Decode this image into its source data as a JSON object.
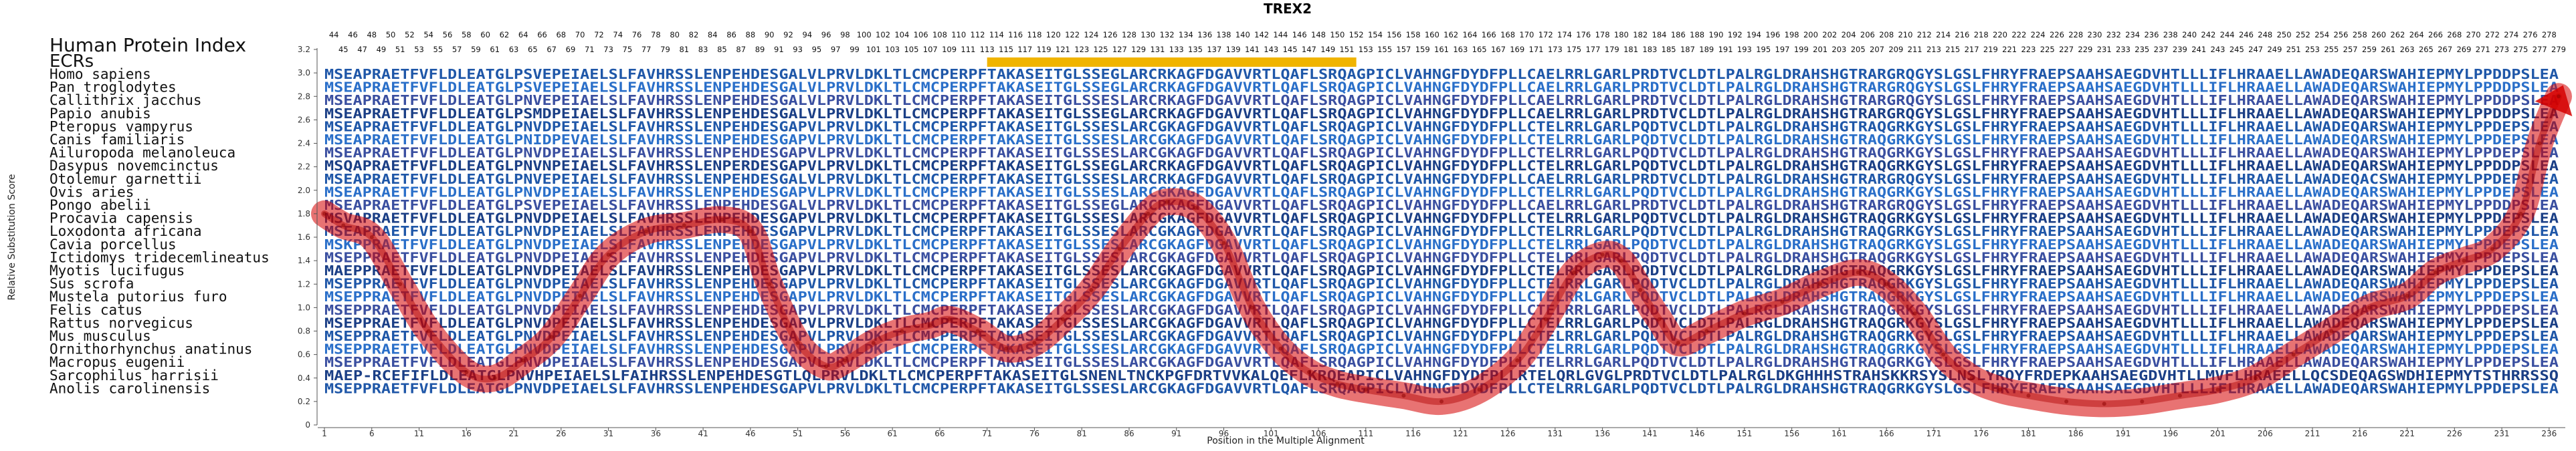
{
  "chart_data": {
    "type": "line",
    "title": "TREX2",
    "xlabel": "Position in the Multiple Alignment",
    "ylabel": "Relative Substitution Score",
    "xlim": [
      1,
      237
    ],
    "ylim": [
      0,
      3.2
    ],
    "yticks": [
      "0",
      "0.2",
      "0.4",
      "0.6",
      "0.8",
      "1.0",
      "1.2",
      "1.4",
      "1.6",
      "1.8",
      "2.0",
      "2.2",
      "2.4",
      "2.6",
      "2.8",
      "3.0",
      "3.2"
    ],
    "xticks": [
      "1",
      "6",
      "11",
      "16",
      "21",
      "26",
      "31",
      "36",
      "41",
      "46",
      "51",
      "56",
      "61",
      "66",
      "71",
      "76",
      "81",
      "86",
      "91",
      "96",
      "101",
      "106",
      "111",
      "116",
      "121",
      "126",
      "131",
      "136",
      "141",
      "146",
      "151",
      "156",
      "161",
      "166",
      "171",
      "176",
      "181",
      "186",
      "191",
      "196",
      "201",
      "206",
      "211",
      "216",
      "221",
      "226",
      "231",
      "236"
    ],
    "human_index_label": "Human Protein Index",
    "ecr_label": "ECRs",
    "human_positions_row1": [
      "44",
      "46",
      "48",
      "50",
      "52",
      "54",
      "56",
      "58",
      "60",
      "62",
      "64",
      "66",
      "68",
      "70",
      "72",
      "74",
      "76",
      "78",
      "80",
      "82",
      "84",
      "86",
      "88",
      "90",
      "92",
      "94",
      "96",
      "98",
      "100",
      "102",
      "104",
      "106",
      "108",
      "110",
      "112",
      "114",
      "116",
      "118",
      "120",
      "122",
      "124",
      "126",
      "128",
      "130",
      "132",
      "134",
      "136",
      "138",
      "140",
      "142",
      "144",
      "146",
      "148",
      "150",
      "152",
      "154",
      "156",
      "158",
      "160",
      "162",
      "164",
      "166",
      "168",
      "170",
      "172",
      "174",
      "176",
      "178",
      "180",
      "182",
      "184",
      "186",
      "188",
      "190",
      "192",
      "194",
      "196",
      "198",
      "200",
      "202",
      "204",
      "206",
      "208",
      "210",
      "212",
      "214",
      "216",
      "218",
      "220",
      "222",
      "224",
      "226",
      "228",
      "230",
      "232",
      "234",
      "236",
      "238",
      "240",
      "242",
      "244",
      "246",
      "248",
      "250",
      "252",
      "254",
      "256",
      "258",
      "260",
      "262",
      "264",
      "266",
      "268",
      "270",
      "272",
      "274",
      "276",
      "278"
    ],
    "human_positions_row2": [
      "45",
      "47",
      "49",
      "51",
      "53",
      "55",
      "57",
      "59",
      "61",
      "63",
      "65",
      "67",
      "69",
      "71",
      "73",
      "75",
      "77",
      "79",
      "81",
      "83",
      "85",
      "87",
      "89",
      "91",
      "93",
      "95",
      "97",
      "99",
      "101",
      "103",
      "105",
      "107",
      "109",
      "111",
      "113",
      "115",
      "117",
      "119",
      "121",
      "123",
      "125",
      "127",
      "129",
      "131",
      "133",
      "135",
      "137",
      "139",
      "141",
      "143",
      "145",
      "147",
      "149",
      "151",
      "153",
      "155",
      "157",
      "159",
      "161",
      "163",
      "165",
      "167",
      "169",
      "171",
      "173",
      "175",
      "177",
      "179",
      "181",
      "183",
      "185",
      "187",
      "189",
      "191",
      "193",
      "195",
      "197",
      "199",
      "201",
      "203",
      "205",
      "207",
      "209",
      "211",
      "213",
      "215",
      "217",
      "219",
      "221",
      "223",
      "225",
      "227",
      "229",
      "231",
      "233",
      "235",
      "237",
      "239",
      "241",
      "243",
      "245",
      "247",
      "249",
      "251",
      "253",
      "255",
      "257",
      "259",
      "261",
      "263",
      "265",
      "267",
      "269",
      "271",
      "273",
      "275",
      "277",
      "279"
    ],
    "ecr_regions": [
      [
        71,
        110
      ]
    ],
    "ecr_color": "#f0b400",
    "species": [
      {
        "name": "Homo sapiens",
        "sequence": "MSEAPRAETFVFLDLEATGLPSVEPEIAELSLFAVHRSSLENPEHDESGALVLPRVLDKLTLCMCPERPFTAKASEITGLSSEGLARCRKAGFDGAVVRTLQAFLSRQAGPICLVAHNGFDYDFPLLCAELRRLGARLPRDTVCLDTLPALRGLDRAHSHGTRARGRQGYSLGSLFHRYFRAEPSAAHSAEGDVHTLLLIFLHRAAELLAWADEQARSWAHIEPMYLPPDDPSLEA"
      },
      {
        "name": "Pan troglodytes",
        "sequence": "MSEAPRAETFVFLDLEATGLPSVEPEIAELSLFAVHRSSLENPEHDESGALVLPRVLDKLTLCMCPERPFTAKASEITGLSSEGLARCRKAGFDGAVVRTLQAFLSRQAGPICLVAHNGFDYDFPLLCAELRRLGARLPRDTVCLDTLPALRGLDRAHSHGTRARGRQGYSLGSLFHRYFRAEPSAAHSAEGDVHTLLLIFLHRAAELLAWADEQARSWAHIEPMYLPPDDPSLEA"
      },
      {
        "name": "Callithrix jacchus",
        "sequence": "MSEAPRAETFVFLDLEATGLPNVEPEIAELSLFAVHRSSLENPEHDESGALVLPRVLDKLTLCMCPERPFTAKASEITGLSSESLARCRKAGFDGAVVRTLQAFLSRQAGPICLVAHNGFDYDFPLLCAELRRLGARLPRDTVCLDTLPALRGLDRAHSHGTRARGRQGYSLGSLFHRYFRAEPSAAHSAEGDVHTLLLIFLHRAAELLAWADEQARSWAHIEPMYLPPDDPSLEA"
      },
      {
        "name": "Papio anubis",
        "sequence": "MSEAPRAETFVFLDLEATGLPSMDPEIAELSLFAVHRSSLENPEHDESGALVLPRVLDKLTLCMCPERPFTAKASEITGLSSEGLARCRKAGFDGAVVRTLQAFLSRQAGPICLVAHNGFDYDFPLLCAELRRLGARLPRDTVCLDTLPALRGLDRAHSHGTRARGRQGYSLGSLFHRYFRAEPSAAHSAEGDVHTLLLIFLHRAAELLAWADEQARSWAHIEPMYLPPDDPSLEA"
      },
      {
        "name": "Pteropus vampyrus",
        "sequence": "MSEAPRAETFVFLDLEATGLPNVDPEIAELSLFAVHRSSLENPEHDESGAPVLPRVLDKLTLCMCPERPFTAKASEITGLSSESLARCGKAGFDGAVVRTLQAFLSRQAGPICLVAHNGFDYDFPLLCTELRRLGARLPQDTVCLDTLPALRGLDRAHSHGTRAQGRKGYSLGSLFHRYFRAEPSAAHSAEGDVHTLLLIFLHRAAELLAWADEQARSWAHIEPMYLPPDEPSLEA"
      },
      {
        "name": "Canis familiaris",
        "sequence": "MSEAPRAETFVFLDLEATGLPNIDPEVAELSLFAVHRSSLENPEHDESGAPVLPRVLDKLTLCMCPERPFTAKASEITGLSSESLARCGKAGFDGAVVRTLQAFLSRQAGPICLVAHNGFDYDFPLLCTELRRLGARLPQDTVCLDTLPALRGLDRAHSHGTRAQGRKGYSLGSLFHRYFRAEPSAAHSAEGDVHTLLLIFLHRAAELLAWADEQARSWAHIEPMYLPPDEPSLEA"
      },
      {
        "name": "Ailuropoda melanoleuca",
        "sequence": "MSEAPRAETFVFLDLEATGLPNVDPEIAELSLFAVHRSSLENPEHDESGAPVLPRVLDKLTLCMCPERPFTAKASEITGLSSESLARCGKAGFDGAVVRTLQAFLSRQAGPICLVAHNGFDYDFPLLCTELRRLGARLPQDTVCLDTLPALRGLDRAHSHGTRAQGRKGYSLGSLFHRYFRAEPSAAHSAEGDVHTLLLIFLHRAAELLAWADEQARSWAHIEPMYLPPDEPSLEA"
      },
      {
        "name": "Dasypus novemcinctus",
        "sequence": "MSQAPRAETFVFLDLEATGLPNVNPEIAELSLFAVHRSSLENPERDESGAPVLPRVLDKLTLCMCPERPFTAKASEITGLSSEGLARCRKAGFDGAVVRTLQAFLSRQAGPICLVAHNGFDYDFPLLCTELRRLGARLPQDTVCLDTLPALRGLDRAHSHGTRAQGRKGYSLGSLFHRYFRAEPSAAHSAEGDVHTLLLIFLHRAAELLAWADEQARSWAHIEPMYLPPDDPSLEA"
      },
      {
        "name": "Otolemur garnettii",
        "sequence": "MSEAPRAETFVFLDLEATGLPNVEPEIAELSLFAVHRSSLENPEHDESGALVLPRVLDKLTLCMCPERPFTAKASEITGLSSESLARCRKAGFDGAVVRTLQAFLSRQAGPICLVAHNGFDYDFPLLCAELRRLGARLPRDTVCLDTLPALRGLDRAHSHGTRARGRQGYSLGSLFHRYFRAEPSAAHSAEGDVHTLLLIFLHRAAELLAWADEQACSWAHIEPMYLPPDEPSLEA"
      },
      {
        "name": "Ovis aries",
        "sequence": "MSEAPRAETFVFLDLEATGLPNVDPEIAELSLFAVHRSSLENPEHDESGAPVLPRVLDKLTLCMCPERPFTAKASEITGLSSESLARCGKAGFDGAVVRTLQAFLSRQAGPICLVAHNGFDYDFPLLCTELRRLGARLPQDTVCLDTLPALRGLDRAHSHGTRAQGRKGYSLGSLFHRYFRAEPSAAHSAEGDVHTLLLIFLHRAAELLAWADEQARSWAHIEPMYLPPDEPSLEA"
      },
      {
        "name": "Pongo abelii",
        "sequence": "MSEAPRAETFVFLDLEATGLPSVEPEIAELSLFAVHRSSLENPEHDESGALVLPRVLDKLTLCMCPERPFTAKASEITGLSSEGLARCRKAGFDGAVVRTLQAFLSRQAGPICLVAHNGFDYDFPLLCAELRRLGARLPRDTVCLDTLPALRGLDRAHSHGTRARGRQGYSLGSLFHRYFRAEPSAAHSAEGDVHTLLLIFLHRAAELLAWADEQARSWAHIEPMYLPPDDPSLEA"
      },
      {
        "name": "Procavia capensis",
        "sequence": "MSVAPRAETFVFLDLEATGLPNVDPEIAELSLFAVHRSSLENPEHDESGAPVLPRVLDKLTLCMCPERPFTAKASEITGLSSESLARCGKAGFDGAVVRTLQAFLSRQAGPICLVAHNGFDYDFPLLCTELRRLGARLPQDTVCLDTLPALRGLDRAHSHGTRAQGRKGYSLGSLFHRYFRAEPSAAHSAEGDVHTLLLIFLHRAAELLAWADEQARSWAHIEPMYLPPDEPSLEA"
      },
      {
        "name": "Loxodonta africana",
        "sequence": "MSEAPRAETFVFLDLEATGLPNVDPEIAELSLFAVHRSSLENPEHDESGAPVLPRVLDKLTLCMCPERPFTAKASEITGLSSESLARCGKAGFDGAVVRTLQAFLSRQAGPICLVAHNGFDYDFPLLCTELRRLGARLPQDTVCLDTLPALRGLDRAHSHGTRAQGRKGYSLGSLFHRYFRAEPSAAHSAEGDVHTLLLIFLHRAAELLAWADEQARSWAHIEPMYLPPDEPSLEA"
      },
      {
        "name": "Cavia porcellus",
        "sequence": "MSKPPRAETFVFLDLEATGLPNVDPEIAELSLFAVHRSSLENPEHDESGAPVLPRVLDKLTLCMCPERPFTAKASEITGLSSESLARCGKAGFDGAVVRTLQAFLSRQAGPICLVAHNGFDYDFPLLCTELRRLGARLPQDTVCLDTLPALRGLDRAHSHGTRAQGRKGYSLGSLFHRYFRAEPSAAHSAEGDVHTLLLIFLHRAAELLAWADEQARSWAHIEPMYLPPDEPSLEA"
      },
      {
        "name": "Ictidomys tridecemlineatus",
        "sequence": "MSEPPRAETFVFLDLEATGLPNVDPEIAELSLFAVHRSSLENPEHDESGAPVLPRVLDKLTLCMCPERPFTAKASEITGLSSESLARCGKAGFDGAVVRTLQAFLSRQAGPICLVAHNGFDYDFPLLCTELRRLGARLPQDTVCLDTLPALRGLDRAHSHGTRAQGRKGYSLGSLFHRYFRAEPSAAHSAEGDVHTLLLIFLHRAAELLAWADEQARSWAHIEPMYLPPDEPSLEA"
      },
      {
        "name": "Myotis lucifugus",
        "sequence": "MAEPPRAETFVFLDLEATGLPNVDPEIAELSLFAVHRSSLENPEHDESGAPVLPRVLDKLTLCMCPERPFTAKASEITGLSSESLARCGKAGFDGAVVRTLQAFLSRQAGPICLVAHNGFDYDFPLLCTELRRLGARLPQDTVCLDTLPALRGLDRAHSHGTRAQGRKGYSLGSLFHRYFRAEPSAAHSAEGDVHTLLLIFLHRAAELLAWADEQARSWAHIEPMYLPPDEPSLEA"
      },
      {
        "name": "Sus scrofa",
        "sequence": "MSEPPRAETFVFLDLEATGLPNVDPEIAELSLFAVHRSSLENPEHDESGAPVLPRVLDKLTLCMCPERPFTAKASEITGLSSESLARCGKAGFDGAVVRTLQAFLSRQAGPICLVAHNGFDYDFPLLCTELRRLGARLPQDTVCLDTLPALRGLDRAHSHGTRAQGRKGYSLGSLFHRYFRAEPSAAHSAEGDVHTLLLIFLHRAAELLAWADEQARSWAHIEPMYLPPDEPSLEA"
      },
      {
        "name": "Mustela putorius furo",
        "sequence": "MSEPPRAETFVFLDLEATGLPNVDPEIAELSLFAVHRSSLENPEHDESGAPVLPRVLDKLTLCMCPERPFTAKASEITGLSSESLARCGKAGFDGAVVRTLQAFLSRQAGPICLVAHNGFDYDFPLLCTELRRLGARLPQDTVCLDTLPALRGLDRAHSHGTRAQGRKGYSLGSLFHRYFRAEPSAAHSAEGDVHTLLLIFLHRAAELLAWADEQARSWAHIEPMYLPPDEPSLEA"
      },
      {
        "name": "Felis catus",
        "sequence": "MSEPPRAETFVFLDLEATGLPNVDPEIAELSLFAVHRSSLENPEHDESGAPVLPRVLDKLTLCMCPERPFTAKASEITGLSSESLARCGKAGFDGAVVRTLQAFLSRQAGPICLVAHNGFDYDFPLLCTELRRLGARLPQDTVCLDTLPALRGLDRAHSHGTRAQGRKGYSLGSLFHRYFRAEPSAAHSAEGDVHTLLLIFLHRAAELLAWADEQARSWAHIEPMYLPPDEPSLEA"
      },
      {
        "name": "Rattus norvegicus",
        "sequence": "MSEPPRAETFVFLDLEATGLPNVDPEIAELSLFAVHRSSLENPEHDESGAPVLPRVLDKLTLCMCPERPFTAKASEITGLSSESLARCGKAGFDGAVVRTLQAFLSRQAGPICLVAHNGFDYDFPLLCTELRRLGARLPQDTVCLDTLPALRGLDRAHSHGTRAQGRKGYSLGSLFHRYFRAEPSAAHSAEGDVHTLLLIFLHRAAELLAWADEQARSWAHIEPMYLPPDEPSLEA"
      },
      {
        "name": "Mus musculus",
        "sequence": "MSEPPRAETFVFLDLEATGLPNVDPEIAELSLFAVHRSSLENPEHDESGAPVLPRVLDKLTLCMCPERPFTAKASEITGLSSESLARCGKAGFDGAVVRTLQAFLSRQAGPICLVAHNGFDYDFPLLCTELRRLGARLPQDTVCLDTLPALRGLDRAHSHGTRAQGRKGYSLGSLFHRYFRAEPSAAHSAEGDVHTLLLIFLHRAAELLAWADEQARSWAHIEPMYLPPDEPSLEA"
      },
      {
        "name": "Ornithorhynchus anatinus",
        "sequence": "MSEPPRAETFVFLDLEATGLPNVDPEIAELSLFAVHRSSLENPEHDESGAPVLPRVLDKLTLCMCPERPFTAKASEITGLSSESLARCGKAGFDGAVVRTLQAFLSRQAGPICLVAHNGFDYDFPLLCTELRRLGARLPQDTVCLDTLPALRGLDRAHSHGTRAQGRKGYSLGSLFHRYFRAEPSAAHSAEGDVHTLLLIFLHRAAELLAWADEQARSWAHIEPMYLPPDEPSLEA"
      },
      {
        "name": "Macropus eugenii",
        "sequence": "MSEPPRAETFVFLDLEATGLPNVDPEIAELSLFAVHRSSLENPEHDESGAPVLPRVLDKLTLCMCPERPFTAKASEITGLSSESLARCGKAGFDGAVVRTLQAFLSRQAGPICLVAHNGFDYDFPLLCTELRRLGARLPQDTVCLDTLPALRGLDRAHSHGTRAQGRKGYSLGSLFHRYFRAEPSAAHSAEGDVHTLLLIFLHRAAELLAWADEQARSWAHIEPMYLPPDEPSLEA"
      },
      {
        "name": "Sarcophilus harrisii",
        "sequence": "MAEP-RCEFIFLDLEATGLPNVHPEIAELSLFAIHRSSLENPEHDESGTLQLPRVLDKLTLCMCPERPFTAKASEITGLSNENLTNCKPGFDRTVVKALQEFLKRQEAPICLVAHNGFDYDFPLLRTELQRLGVGLPRDTVCLDTLPALRGLDKGHHHSTRAHSKKRSYSLNSLYRQYFRDEPKAAHSAEGDVHTLLMVFLHRAEELLQCSDEQAGSWDHIEPMYTSTHRRSSQ"
      },
      {
        "name": "Anolis carolinensis",
        "sequence": "MSEPPRAETFVFLDLEATGLPNVDPEIAELSLFAVHRSSLENPEHDESGAPVLPRVLDKLTLCMCPERPFTAKASEITGLSSESLARCGKAGFDGAVVRTLQAFLSRQAGPICLVAHNGFDYDFPLLCTELRRLGARLPQDTVCLDTLPALRGLDRAHSHGTRAQGRKGYSLGSLFHRYFRAEPSAAHSAEGDVHTLLLIFLHRAAELLAWADEQARSWAHIEPMYLPPDEPSLEA"
      }
    ],
    "series": [
      {
        "x": [
          1,
          3,
          6,
          9,
          12,
          16,
          19,
          22,
          25,
          28,
          31,
          35,
          39,
          43,
          46,
          48,
          51,
          54,
          56,
          59,
          62,
          65,
          67,
          70,
          73,
          76,
          79,
          82,
          85,
          88,
          90,
          93,
          96,
          99,
          102,
          105,
          108,
          111,
          115,
          119,
          123,
          127,
          130,
          133,
          136,
          138,
          140,
          142,
          144,
          147,
          151,
          155,
          159,
          163,
          166,
          169,
          172,
          175,
          178,
          181,
          185,
          189,
          193,
          197,
          201,
          205,
          209,
          213,
          217,
          221,
          224,
          227,
          230,
          233,
          235,
          237
        ],
        "values": [
          1.8,
          1.7,
          1.6,
          1.2,
          0.8,
          0.45,
          0.4,
          0.55,
          0.75,
          1.1,
          1.45,
          1.65,
          1.7,
          1.75,
          1.65,
          1.2,
          0.7,
          0.5,
          0.55,
          0.7,
          0.8,
          0.85,
          0.9,
          0.8,
          0.65,
          0.7,
          0.9,
          1.15,
          1.5,
          1.8,
          1.9,
          1.85,
          1.55,
          1.0,
          0.65,
          0.45,
          0.35,
          0.3,
          0.25,
          0.2,
          0.3,
          0.55,
          0.9,
          1.3,
          1.45,
          1.4,
          1.15,
          0.9,
          0.7,
          0.8,
          0.95,
          1.05,
          1.2,
          1.3,
          1.2,
          0.95,
          0.6,
          0.4,
          0.3,
          0.25,
          0.2,
          0.18,
          0.2,
          0.25,
          0.3,
          0.4,
          0.6,
          0.8,
          1.0,
          1.1,
          1.3,
          1.4,
          1.5,
          1.8,
          2.4,
          2.8
        ],
        "color": "#d50000"
      }
    ]
  }
}
